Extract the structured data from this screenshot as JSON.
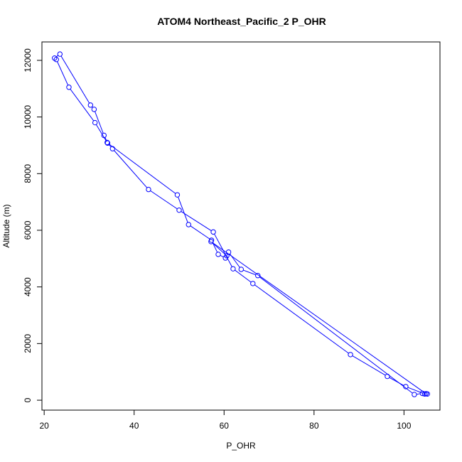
{
  "chart_data": {
    "type": "scatter",
    "title": "ATOM4 Northeast_Pacific_2 P_OHR",
    "xlabel": "P_OHR",
    "ylabel": "Altitude (m)",
    "xlim": [
      19.5,
      108
    ],
    "ylim": [
      -350,
      12650
    ],
    "x_ticks": [
      20,
      40,
      60,
      80,
      100
    ],
    "y_ticks": [
      0,
      2000,
      4000,
      6000,
      8000,
      10000,
      12000
    ],
    "x_tick_labels": [
      "20",
      "40",
      "60",
      "80",
      "100"
    ],
    "y_tick_labels": [
      "0",
      "2000",
      "4000",
      "6000",
      "8000",
      "10000",
      "12000"
    ],
    "grid": false,
    "legend": "none",
    "series_color": "#0000ff",
    "marker": "open-circle",
    "connect_points": true,
    "series": [
      {
        "x": [
          104.6,
          100.4,
          96.3,
          88.1,
          66.4,
          62.0,
          57.6,
          50.0,
          43.2,
          35.2,
          34.0,
          31.3,
          25.5,
          22.7,
          22.3,
          23.5,
          30.3,
          31.1,
          33.3,
          34.1,
          49.6,
          52.1,
          57.2,
          58.7,
          60.3,
          61.0,
          63.8,
          67.5,
          102.3,
          104.1,
          105.2,
          104.9,
          57.1,
          60.6
        ],
        "y": [
          220,
          480,
          840,
          1610,
          4120,
          4640,
          5940,
          6710,
          7440,
          8880,
          9100,
          9800,
          11050,
          12030,
          12080,
          12220,
          10420,
          10270,
          9350,
          9080,
          7250,
          6200,
          5650,
          5150,
          5020,
          5230,
          4620,
          4400,
          200,
          240,
          220,
          230,
          5600,
          5100
        ]
      }
    ]
  }
}
